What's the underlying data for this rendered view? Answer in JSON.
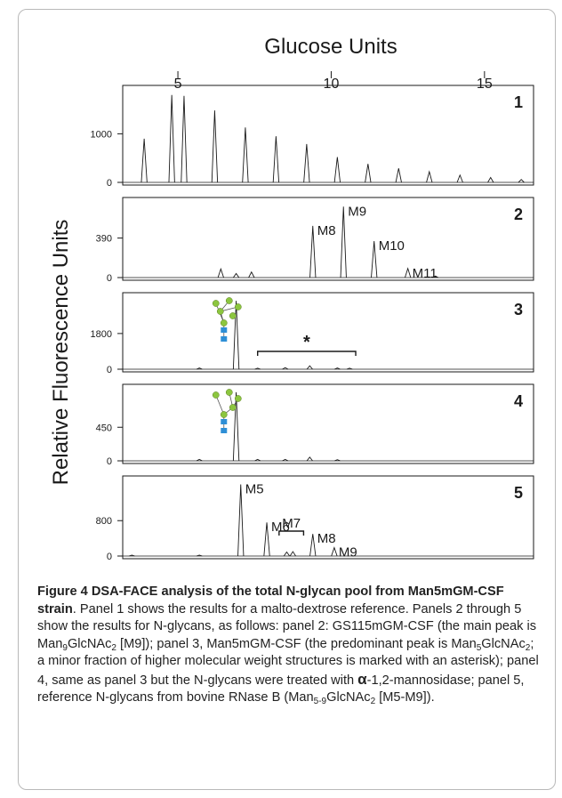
{
  "chart_data": {
    "type": "line",
    "top_axis_title": "Glucose Units",
    "top_axis_ticks": [
      5,
      10,
      15
    ],
    "y_axis_title": "Relative Fluorescence Units",
    "x_range": [
      3.2,
      16.6
    ],
    "panels": [
      {
        "label": "1",
        "y_ticks": [
          0,
          1000
        ],
        "y_max": 1850,
        "peaks": [
          {
            "x": 3.9,
            "y": 900
          },
          {
            "x": 4.8,
            "y": 1800
          },
          {
            "x": 5.2,
            "y": 1780
          },
          {
            "x": 6.2,
            "y": 1480
          },
          {
            "x": 7.2,
            "y": 1130
          },
          {
            "x": 8.2,
            "y": 950
          },
          {
            "x": 9.2,
            "y": 790
          },
          {
            "x": 10.2,
            "y": 520
          },
          {
            "x": 11.2,
            "y": 380
          },
          {
            "x": 12.2,
            "y": 290
          },
          {
            "x": 13.2,
            "y": 220
          },
          {
            "x": 14.2,
            "y": 150
          },
          {
            "x": 15.2,
            "y": 100
          },
          {
            "x": 16.2,
            "y": 60
          }
        ]
      },
      {
        "label": "2",
        "y_ticks": [
          0,
          390
        ],
        "y_max": 720,
        "peaks": [
          {
            "x": 6.4,
            "y": 85
          },
          {
            "x": 6.9,
            "y": 40
          },
          {
            "x": 7.4,
            "y": 55
          },
          {
            "x": 9.4,
            "y": 510,
            "label": "M8"
          },
          {
            "x": 10.4,
            "y": 700,
            "label": "M9"
          },
          {
            "x": 11.4,
            "y": 360,
            "label": "M10"
          },
          {
            "x": 12.5,
            "y": 90,
            "label": "M11"
          },
          {
            "x": 13.4,
            "y": 15
          }
        ]
      },
      {
        "label": "3",
        "y_ticks": [
          0,
          1800
        ],
        "y_max": 3500,
        "annotation": "*",
        "bracket_x": [
          7.6,
          10.8
        ],
        "peaks": [
          {
            "x": 5.7,
            "y": 60
          },
          {
            "x": 6.9,
            "y": 3450
          },
          {
            "x": 7.6,
            "y": 50
          },
          {
            "x": 8.5,
            "y": 80
          },
          {
            "x": 9.3,
            "y": 170
          },
          {
            "x": 10.2,
            "y": 60
          },
          {
            "x": 10.6,
            "y": 50
          }
        ]
      },
      {
        "label": "4",
        "y_ticks": [
          0,
          450
        ],
        "y_max": 930,
        "peaks": [
          {
            "x": 5.7,
            "y": 20
          },
          {
            "x": 6.9,
            "y": 920
          },
          {
            "x": 7.6,
            "y": 20
          },
          {
            "x": 8.5,
            "y": 20
          },
          {
            "x": 9.3,
            "y": 50
          },
          {
            "x": 10.2,
            "y": 15
          }
        ]
      },
      {
        "label": "5",
        "y_ticks": [
          0,
          800
        ],
        "y_max": 1650,
        "peaks": [
          {
            "x": 3.5,
            "y": 20
          },
          {
            "x": 5.7,
            "y": 20
          },
          {
            "x": 7.05,
            "y": 1620,
            "label": "M5"
          },
          {
            "x": 7.9,
            "y": 760,
            "label": "M6"
          },
          {
            "x": 8.55,
            "y": 90
          },
          {
            "x": 8.75,
            "y": 100
          },
          {
            "x": 9.4,
            "y": 500,
            "label": "M8"
          },
          {
            "x": 10.1,
            "y": 190,
            "label": "M9"
          }
        ],
        "bracket_label": "M7",
        "bracket_x": [
          8.3,
          9.1
        ]
      }
    ]
  },
  "caption": {
    "title": "Figure 4 DSA-FACE analysis of the total N-glycan pool from Man5mGM-CSF strain",
    "text_1": ". Panel 1 shows the results for a malto-dextrose reference. Panels 2 through 5 show the results for N-glycans, as follows: panel 2: GS115mGM-CSF (the main peak is Man",
    "sub_9": "9",
    "text_2": "GlcNAc",
    "sub_2a": "2",
    "text_3": " [M9]); panel 3, Man5mGM-CSF (the predominant peak is Man",
    "sub_5": "5",
    "text_4": "GlcNAc",
    "sub_2b": "2",
    "text_5": "; a minor fraction of higher molecular weight structures is marked with an asterisk); panel 4, same as panel 3 but the N-glycans were treated with ",
    "alpha": "α",
    "text_6": "-1,2-mannosidase; panel 5, reference N-glycans from bovine RNase B (Man",
    "sub_range": "5-9",
    "text_7": "GlcNAc",
    "sub_2c": "2",
    "text_8": " [M5-M9])."
  },
  "colors": {
    "trace": "#1a1a1a",
    "mannose": "#8cc63f",
    "glcnac": "#2e8fd6",
    "frame": "#b9b9b9"
  }
}
